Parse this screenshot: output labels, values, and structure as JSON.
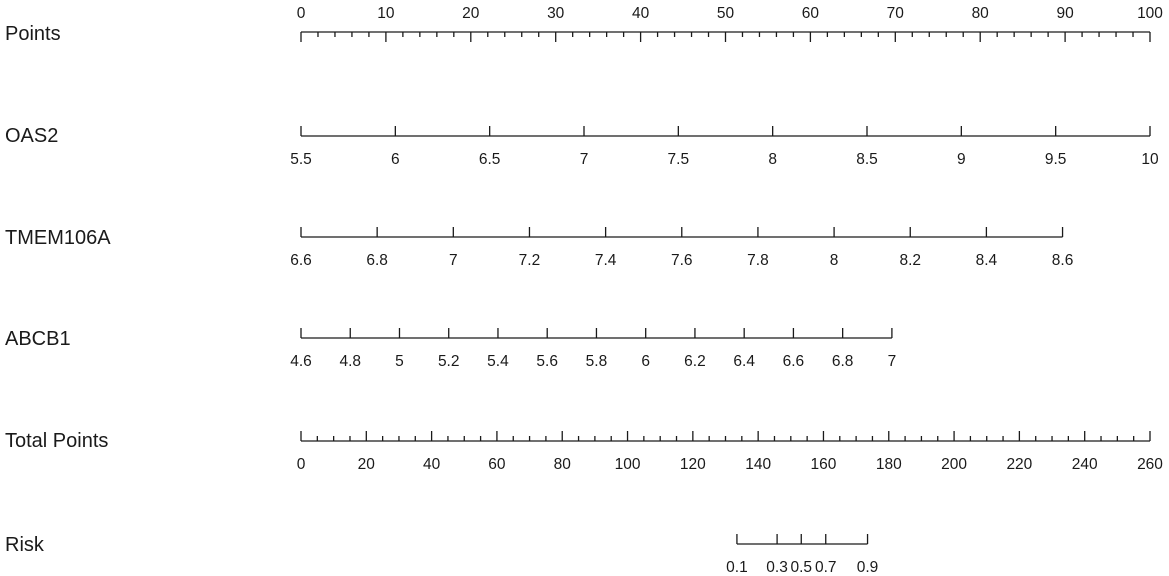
{
  "chart_data": {
    "type": "nomogram",
    "rows": [
      {
        "id": "points",
        "label": "Points",
        "min": 0,
        "max": 100,
        "labels_position": "above",
        "major_ticks": [
          0,
          10,
          20,
          30,
          40,
          50,
          60,
          70,
          80,
          90,
          100
        ],
        "major_labels": [
          "0",
          "10",
          "20",
          "30",
          "40",
          "50",
          "60",
          "70",
          "80",
          "90",
          "100"
        ],
        "minor_step": 2
      },
      {
        "id": "oas2",
        "label": "OAS2",
        "min": 5.5,
        "max": 10,
        "labels_position": "below",
        "major_ticks": [
          5.5,
          6,
          6.5,
          7,
          7.5,
          8,
          8.5,
          9,
          9.5,
          10
        ],
        "major_labels": [
          "5.5",
          "6",
          "6.5",
          "7",
          "7.5",
          "8",
          "8.5",
          "9",
          "9.5",
          "10"
        ],
        "points_range": [
          0,
          100
        ]
      },
      {
        "id": "tmem106a",
        "label": "TMEM106A",
        "min": 6.6,
        "max": 8.6,
        "labels_position": "below",
        "major_ticks": [
          6.6,
          6.8,
          7,
          7.2,
          7.4,
          7.6,
          7.8,
          8,
          8.2,
          8.4,
          8.6
        ],
        "major_labels": [
          "6.6",
          "6.8",
          "7",
          "7.2",
          "7.4",
          "7.6",
          "7.8",
          "8",
          "8.2",
          "8.4",
          "8.6"
        ],
        "points_range": [
          0,
          89.7
        ]
      },
      {
        "id": "abcb1",
        "label": "ABCB1",
        "min": 4.6,
        "max": 7,
        "labels_position": "below",
        "major_ticks": [
          4.6,
          4.8,
          5,
          5.2,
          5.4,
          5.6,
          5.8,
          6,
          6.2,
          6.4,
          6.6,
          6.8,
          7
        ],
        "major_labels": [
          "4.6",
          "4.8",
          "5",
          "5.2",
          "5.4",
          "5.6",
          "5.8",
          "6",
          "6.2",
          "6.4",
          "6.6",
          "6.8",
          "7"
        ],
        "points_range": [
          0,
          69.6
        ]
      },
      {
        "id": "total_points",
        "label": "Total Points",
        "min": 0,
        "max": 260,
        "labels_position": "below",
        "major_ticks": [
          0,
          20,
          40,
          60,
          80,
          100,
          120,
          140,
          160,
          180,
          200,
          220,
          240,
          260
        ],
        "major_labels": [
          "0",
          "20",
          "40",
          "60",
          "80",
          "100",
          "120",
          "140",
          "160",
          "180",
          "200",
          "220",
          "240",
          "260"
        ],
        "minor_step": 5
      },
      {
        "id": "risk",
        "label": "Risk",
        "labels_position": "below",
        "major_ticks": [
          0.1,
          0.3,
          0.5,
          0.7,
          0.9
        ],
        "major_labels": [
          "0.1",
          "0.3",
          "0.5",
          "0.7",
          "0.9"
        ],
        "total_points_at_ticks": [
          133.5,
          145.8,
          153.2,
          160.7,
          173.5
        ]
      }
    ]
  }
}
